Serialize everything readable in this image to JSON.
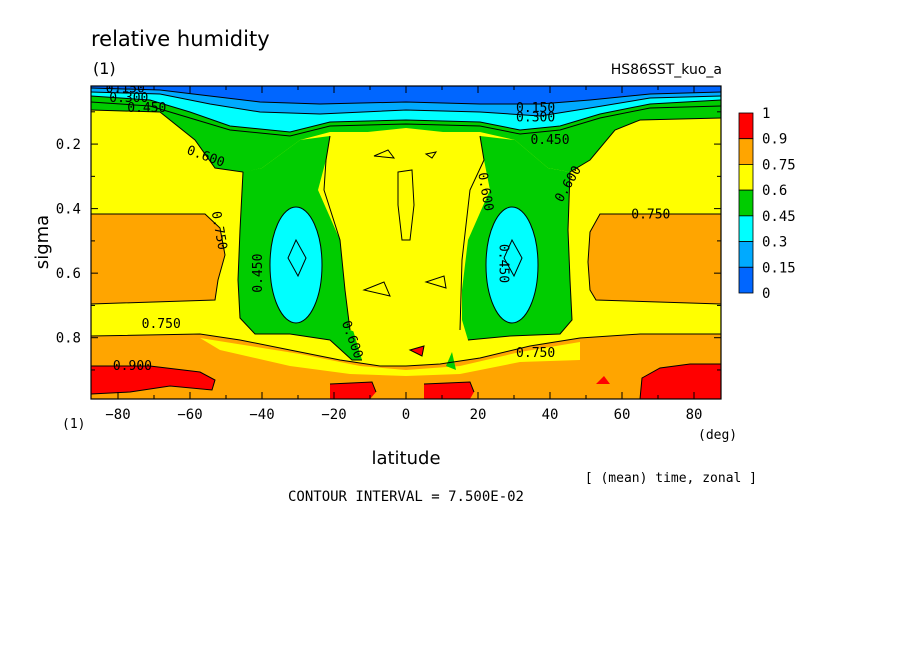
{
  "chart_data": {
    "type": "heatmap",
    "title": "relative humidity",
    "subtitle": "(1)",
    "experiment": "HS86SST_kuo_a",
    "xlabel": "latitude",
    "xunit": "(deg)",
    "ylabel": "sigma",
    "yunit": "(1)",
    "xlim": [
      -87.5,
      87.5
    ],
    "ylim": [
      0.02,
      0.99
    ],
    "x_ticks": [
      -80,
      -60,
      -40,
      -20,
      0,
      20,
      40,
      60,
      80
    ],
    "y_ticks": [
      0.2,
      0.4,
      0.6,
      0.8
    ],
    "x_tick_labels": [
      "−80",
      "−60",
      "−40",
      "−20",
      "0",
      "20",
      "40",
      "60",
      "80"
    ],
    "y_tick_labels": [
      "0.2",
      "0.4",
      "0.6",
      "0.8"
    ],
    "averaging_note": "[ (mean) time, zonal ]",
    "contour_interval_text": "CONTOUR INTERVAL = 7.500E-02",
    "legend": {
      "levels": [
        "1",
        "0.9",
        "0.75",
        "0.6",
        "0.45",
        "0.3",
        "0.15",
        "0"
      ],
      "bins": [
        {
          "min": 0.9,
          "max": 1.0,
          "color": "#ff0000"
        },
        {
          "min": 0.75,
          "max": 0.9,
          "color": "#ffa500"
        },
        {
          "min": 0.6,
          "max": 0.75,
          "color": "#ffff00"
        },
        {
          "min": 0.45,
          "max": 0.6,
          "color": "#00cc00"
        },
        {
          "min": 0.3,
          "max": 0.45,
          "color": "#00ffff"
        },
        {
          "min": 0.15,
          "max": 0.3,
          "color": "#00aaff"
        },
        {
          "min": 0.0,
          "max": 0.15,
          "color": "#0066ff"
        }
      ]
    },
    "contour_labels": [
      {
        "text": "0.150",
        "lat": -78,
        "sigma": 0.04,
        "rotate": 0
      },
      {
        "text": "0.300",
        "lat": -77,
        "sigma": 0.07,
        "rotate": 0
      },
      {
        "text": "0.450",
        "lat": -72,
        "sigma": 0.1,
        "rotate": 0
      },
      {
        "text": "0.600",
        "lat": -56,
        "sigma": 0.25,
        "rotate": 20
      },
      {
        "text": "0.750",
        "lat": -53,
        "sigma": 0.47,
        "rotate": 80
      },
      {
        "text": "0.450",
        "lat": -40,
        "sigma": 0.6,
        "rotate": -90
      },
      {
        "text": "0.750",
        "lat": -68,
        "sigma": 0.77,
        "rotate": 0
      },
      {
        "text": "0.900",
        "lat": -76,
        "sigma": 0.9,
        "rotate": 0
      },
      {
        "text": "0.600",
        "lat": -16,
        "sigma": 0.81,
        "rotate": 70
      },
      {
        "text": "0.600",
        "lat": 21,
        "sigma": 0.35,
        "rotate": 80
      },
      {
        "text": "0.450",
        "lat": 26,
        "sigma": 0.57,
        "rotate": 90
      },
      {
        "text": "0.150",
        "lat": 36,
        "sigma": 0.1,
        "rotate": 0
      },
      {
        "text": "0.300",
        "lat": 36,
        "sigma": 0.13,
        "rotate": 0
      },
      {
        "text": "0.450",
        "lat": 40,
        "sigma": 0.2,
        "rotate": 0
      },
      {
        "text": "0.600",
        "lat": 46,
        "sigma": 0.33,
        "rotate": -60
      },
      {
        "text": "0.750",
        "lat": 68,
        "sigma": 0.43,
        "rotate": 0
      },
      {
        "text": "0.750",
        "lat": 36,
        "sigma": 0.86,
        "rotate": 0
      }
    ]
  }
}
